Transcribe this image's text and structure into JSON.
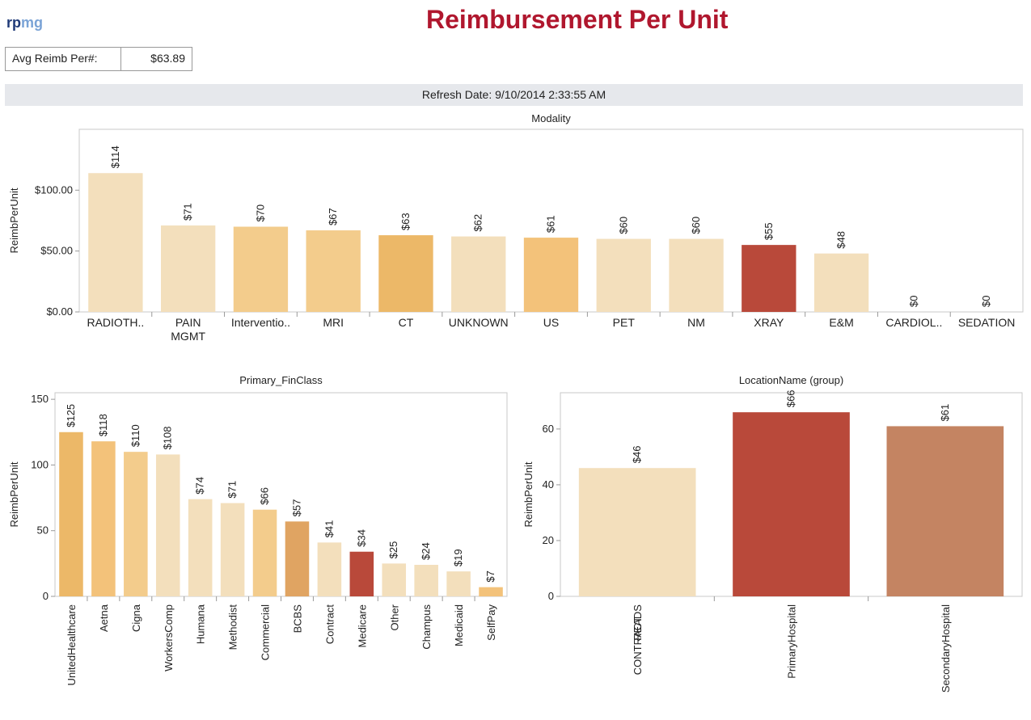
{
  "header": {
    "logo_rp": "rp",
    "logo_mg": "mg",
    "title": "Reimbursement Per Unit",
    "kpi_label": "Avg Reimb Per#:",
    "kpi_value": "$63.89",
    "refresh": "Refresh Date: 9/10/2014 2:33:55 AM"
  },
  "chart_data": [
    {
      "type": "bar",
      "title": "Modality",
      "xlabel": "",
      "ylabel": "ReimbPerUnit",
      "categories": [
        "RADIOTH..",
        "PAIN MGMT",
        "Interventio..",
        "MRI",
        "CT",
        "UNKNOWN",
        "US",
        "PET",
        "NM",
        "XRAY",
        "E&M",
        "CARDIOL..",
        "SEDATION"
      ],
      "values": [
        114,
        71,
        70,
        67,
        63,
        62,
        61,
        60,
        60,
        55,
        48,
        0,
        0
      ],
      "data_labels": [
        "$114",
        "$71",
        "$70",
        "$67",
        "$63",
        "$62",
        "$61",
        "$60",
        "$60",
        "$55",
        "$48",
        "$0",
        "$0"
      ],
      "colors": [
        "#f3dfbc",
        "#f3dfbc",
        "#f3cc8c",
        "#f3cc8c",
        "#ecb868",
        "#f3dfbc",
        "#f3c27a",
        "#f3dfbc",
        "#f3dfbc",
        "#b9493a",
        "#f3dfbc",
        "#f3dfbc",
        "#f3dfbc"
      ],
      "yticks": [
        0,
        50,
        100
      ],
      "ytick_labels": [
        "$0.00",
        "$50.00",
        "$100.00"
      ],
      "ylim": [
        0,
        150
      ],
      "grid": false
    },
    {
      "type": "bar",
      "title": "Primary_FinClass",
      "xlabel": "",
      "ylabel": "ReimbPerUnit",
      "categories": [
        "UnitedHealthcare",
        "Aetna",
        "Cigna",
        "WorkersComp",
        "Humana",
        "Methodist",
        "Commercial",
        "BCBS",
        "Contract",
        "Medicare",
        "Other",
        "Champus",
        "Medicaid",
        "SelfPay"
      ],
      "values": [
        125,
        118,
        110,
        108,
        74,
        71,
        66,
        57,
        41,
        34,
        25,
        24,
        19,
        7
      ],
      "data_labels": [
        "$125",
        "$118",
        "$110",
        "$108",
        "$74",
        "$71",
        "$66",
        "$57",
        "$41",
        "$34",
        "$25",
        "$24",
        "$19",
        "$7"
      ],
      "colors": [
        "#ecb868",
        "#f3c27a",
        "#f3cc8c",
        "#f3dfbc",
        "#f3dfbc",
        "#f3dfbc",
        "#f3cc8c",
        "#e0a462",
        "#f3dfbc",
        "#b9493a",
        "#f3dfbc",
        "#f3dfbc",
        "#f3dfbc",
        "#f3c27a"
      ],
      "yticks": [
        0,
        50,
        100,
        150
      ],
      "ytick_labels": [
        "0",
        "50",
        "100",
        "150"
      ],
      "ylim": [
        0,
        155
      ],
      "grid": false
    },
    {
      "type": "bar",
      "title": "LocationName (group)",
      "xlabel": "",
      "ylabel": "ReimbPerUnit",
      "categories": [
        "CONTRACT READS",
        "PrimaryHospital",
        "SecondaryHospital"
      ],
      "values": [
        46,
        66,
        61
      ],
      "data_labels": [
        "$46",
        "$66",
        "$61"
      ],
      "colors": [
        "#f3dfbc",
        "#b9493a",
        "#c48462"
      ],
      "yticks": [
        0,
        20,
        40,
        60
      ],
      "ytick_labels": [
        "0",
        "20",
        "40",
        "60"
      ],
      "ylim": [
        0,
        73
      ],
      "grid": false
    }
  ]
}
